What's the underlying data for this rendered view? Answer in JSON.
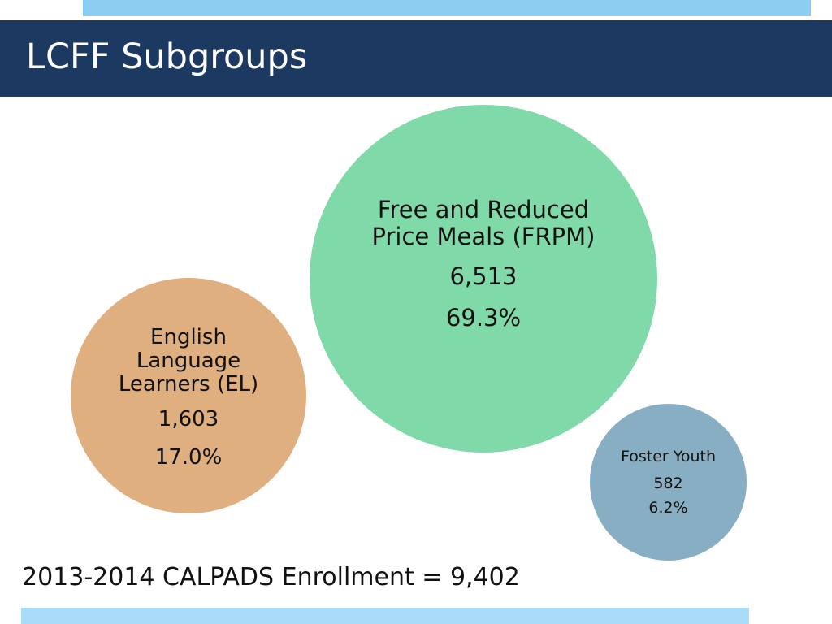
{
  "title": "LCFF Subgroups",
  "subgroups": [
    {
      "name": "Free and Reduced Price Meals (FRPM)",
      "count": "6,513",
      "percent": "69.3%",
      "color": "#80d9a8"
    },
    {
      "name": "English Language Learners (EL)",
      "count": "1,603",
      "percent": "17.0%",
      "color": "#dfaf80"
    },
    {
      "name": "Foster Youth",
      "count": "582",
      "percent": "6.2%",
      "color": "#87aec3"
    }
  ],
  "footer": "2013-2014 CALPADS Enrollment = 9,402",
  "colors": {
    "title_bar": "#1c3a61",
    "top_band": "#8ecdf2",
    "bottom_band": "#a9dcf6",
    "title_text": "#ffffff"
  }
}
